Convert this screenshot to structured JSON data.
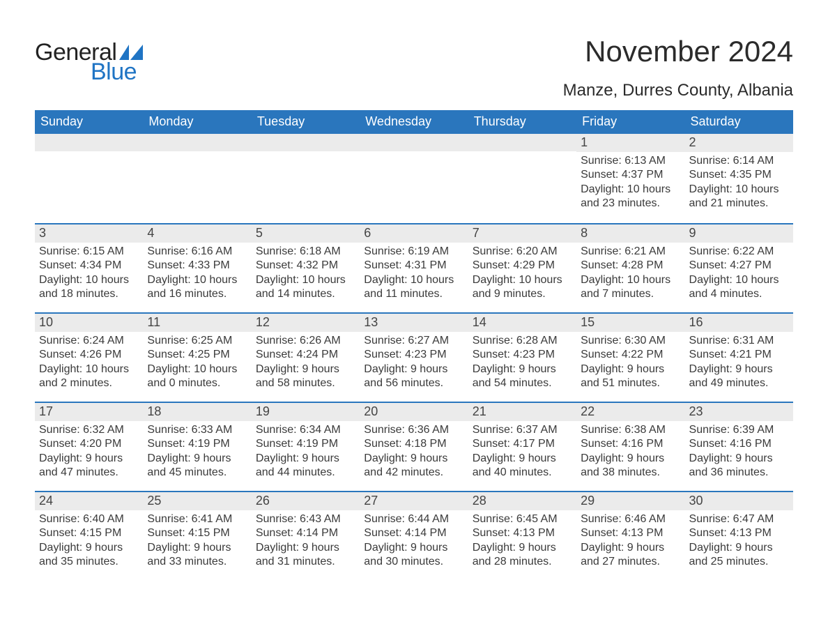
{
  "logo": {
    "text_general": "General",
    "text_blue": "Blue",
    "flag_color": "#1f74c4"
  },
  "title": "November 2024",
  "location": "Manze, Durres County, Albania",
  "colors": {
    "header_bg": "#2a76bd",
    "header_text": "#ffffff",
    "week_divider": "#2a76bd",
    "daynum_bg": "#ebebeb",
    "body_text": "#3a3a3a",
    "page_bg": "#ffffff"
  },
  "typography": {
    "title_fontsize": 42,
    "location_fontsize": 24,
    "dow_fontsize": 18,
    "daynum_fontsize": 18,
    "body_fontsize": 16
  },
  "days_of_week": [
    "Sunday",
    "Monday",
    "Tuesday",
    "Wednesday",
    "Thursday",
    "Friday",
    "Saturday"
  ],
  "weeks": [
    [
      {
        "empty": true
      },
      {
        "empty": true
      },
      {
        "empty": true
      },
      {
        "empty": true
      },
      {
        "empty": true
      },
      {
        "n": "1",
        "sunrise": "Sunrise: 6:13 AM",
        "sunset": "Sunset: 4:37 PM",
        "daylight": "Daylight: 10 hours and 23 minutes."
      },
      {
        "n": "2",
        "sunrise": "Sunrise: 6:14 AM",
        "sunset": "Sunset: 4:35 PM",
        "daylight": "Daylight: 10 hours and 21 minutes."
      }
    ],
    [
      {
        "n": "3",
        "sunrise": "Sunrise: 6:15 AM",
        "sunset": "Sunset: 4:34 PM",
        "daylight": "Daylight: 10 hours and 18 minutes."
      },
      {
        "n": "4",
        "sunrise": "Sunrise: 6:16 AM",
        "sunset": "Sunset: 4:33 PM",
        "daylight": "Daylight: 10 hours and 16 minutes."
      },
      {
        "n": "5",
        "sunrise": "Sunrise: 6:18 AM",
        "sunset": "Sunset: 4:32 PM",
        "daylight": "Daylight: 10 hours and 14 minutes."
      },
      {
        "n": "6",
        "sunrise": "Sunrise: 6:19 AM",
        "sunset": "Sunset: 4:31 PM",
        "daylight": "Daylight: 10 hours and 11 minutes."
      },
      {
        "n": "7",
        "sunrise": "Sunrise: 6:20 AM",
        "sunset": "Sunset: 4:29 PM",
        "daylight": "Daylight: 10 hours and 9 minutes."
      },
      {
        "n": "8",
        "sunrise": "Sunrise: 6:21 AM",
        "sunset": "Sunset: 4:28 PM",
        "daylight": "Daylight: 10 hours and 7 minutes."
      },
      {
        "n": "9",
        "sunrise": "Sunrise: 6:22 AM",
        "sunset": "Sunset: 4:27 PM",
        "daylight": "Daylight: 10 hours and 4 minutes."
      }
    ],
    [
      {
        "n": "10",
        "sunrise": "Sunrise: 6:24 AM",
        "sunset": "Sunset: 4:26 PM",
        "daylight": "Daylight: 10 hours and 2 minutes."
      },
      {
        "n": "11",
        "sunrise": "Sunrise: 6:25 AM",
        "sunset": "Sunset: 4:25 PM",
        "daylight": "Daylight: 10 hours and 0 minutes."
      },
      {
        "n": "12",
        "sunrise": "Sunrise: 6:26 AM",
        "sunset": "Sunset: 4:24 PM",
        "daylight": "Daylight: 9 hours and 58 minutes."
      },
      {
        "n": "13",
        "sunrise": "Sunrise: 6:27 AM",
        "sunset": "Sunset: 4:23 PM",
        "daylight": "Daylight: 9 hours and 56 minutes."
      },
      {
        "n": "14",
        "sunrise": "Sunrise: 6:28 AM",
        "sunset": "Sunset: 4:23 PM",
        "daylight": "Daylight: 9 hours and 54 minutes."
      },
      {
        "n": "15",
        "sunrise": "Sunrise: 6:30 AM",
        "sunset": "Sunset: 4:22 PM",
        "daylight": "Daylight: 9 hours and 51 minutes."
      },
      {
        "n": "16",
        "sunrise": "Sunrise: 6:31 AM",
        "sunset": "Sunset: 4:21 PM",
        "daylight": "Daylight: 9 hours and 49 minutes."
      }
    ],
    [
      {
        "n": "17",
        "sunrise": "Sunrise: 6:32 AM",
        "sunset": "Sunset: 4:20 PM",
        "daylight": "Daylight: 9 hours and 47 minutes."
      },
      {
        "n": "18",
        "sunrise": "Sunrise: 6:33 AM",
        "sunset": "Sunset: 4:19 PM",
        "daylight": "Daylight: 9 hours and 45 minutes."
      },
      {
        "n": "19",
        "sunrise": "Sunrise: 6:34 AM",
        "sunset": "Sunset: 4:19 PM",
        "daylight": "Daylight: 9 hours and 44 minutes."
      },
      {
        "n": "20",
        "sunrise": "Sunrise: 6:36 AM",
        "sunset": "Sunset: 4:18 PM",
        "daylight": "Daylight: 9 hours and 42 minutes."
      },
      {
        "n": "21",
        "sunrise": "Sunrise: 6:37 AM",
        "sunset": "Sunset: 4:17 PM",
        "daylight": "Daylight: 9 hours and 40 minutes."
      },
      {
        "n": "22",
        "sunrise": "Sunrise: 6:38 AM",
        "sunset": "Sunset: 4:16 PM",
        "daylight": "Daylight: 9 hours and 38 minutes."
      },
      {
        "n": "23",
        "sunrise": "Sunrise: 6:39 AM",
        "sunset": "Sunset: 4:16 PM",
        "daylight": "Daylight: 9 hours and 36 minutes."
      }
    ],
    [
      {
        "n": "24",
        "sunrise": "Sunrise: 6:40 AM",
        "sunset": "Sunset: 4:15 PM",
        "daylight": "Daylight: 9 hours and 35 minutes."
      },
      {
        "n": "25",
        "sunrise": "Sunrise: 6:41 AM",
        "sunset": "Sunset: 4:15 PM",
        "daylight": "Daylight: 9 hours and 33 minutes."
      },
      {
        "n": "26",
        "sunrise": "Sunrise: 6:43 AM",
        "sunset": "Sunset: 4:14 PM",
        "daylight": "Daylight: 9 hours and 31 minutes."
      },
      {
        "n": "27",
        "sunrise": "Sunrise: 6:44 AM",
        "sunset": "Sunset: 4:14 PM",
        "daylight": "Daylight: 9 hours and 30 minutes."
      },
      {
        "n": "28",
        "sunrise": "Sunrise: 6:45 AM",
        "sunset": "Sunset: 4:13 PM",
        "daylight": "Daylight: 9 hours and 28 minutes."
      },
      {
        "n": "29",
        "sunrise": "Sunrise: 6:46 AM",
        "sunset": "Sunset: 4:13 PM",
        "daylight": "Daylight: 9 hours and 27 minutes."
      },
      {
        "n": "30",
        "sunrise": "Sunrise: 6:47 AM",
        "sunset": "Sunset: 4:13 PM",
        "daylight": "Daylight: 9 hours and 25 minutes."
      }
    ]
  ]
}
